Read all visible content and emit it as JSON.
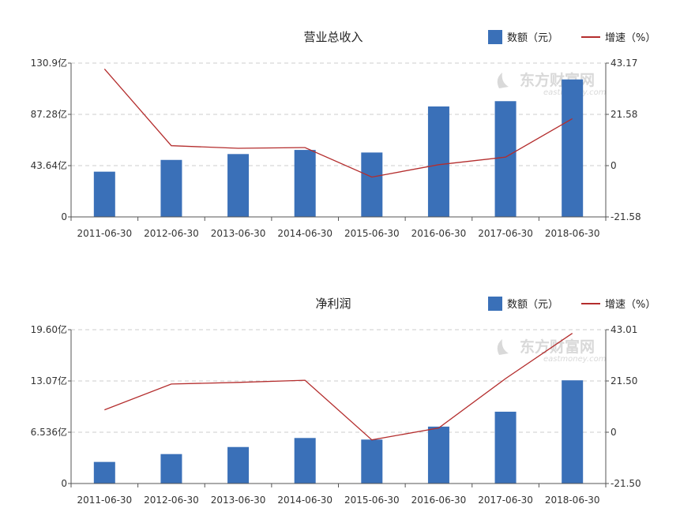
{
  "legend": {
    "bar_label": "数额（元）",
    "line_label": "增速（%）"
  },
  "watermark": {
    "main": "东方财富网",
    "sub": "eastmoney.com"
  },
  "colors": {
    "bar": "#3a70b8",
    "line": "#b42d2d",
    "grid": "#cccccc",
    "axis": "#555555"
  },
  "chart_data": [
    {
      "type": "bar",
      "title": "营业总收入",
      "categories": [
        "2011-06-30",
        "2012-06-30",
        "2013-06-30",
        "2014-06-30",
        "2015-06-30",
        "2016-06-30",
        "2017-06-30",
        "2018-06-30"
      ],
      "series": [
        {
          "name": "数额（元）",
          "type": "bar",
          "axis": "left",
          "unit": "亿",
          "values": [
            38.5,
            48.5,
            53.5,
            57.0,
            54.8,
            94.0,
            98.5,
            117.0
          ]
        },
        {
          "name": "增速（%）",
          "type": "line",
          "axis": "right",
          "values": [
            40.7,
            8.4,
            7.3,
            7.6,
            -4.8,
            0.4,
            3.6,
            19.8
          ]
        }
      ],
      "left_axis": {
        "ylim": [
          0,
          130.9
        ],
        "ticks": [
          "0",
          "43.64亿",
          "87.28亿",
          "130.9亿"
        ]
      },
      "right_axis": {
        "ylim": [
          -21.58,
          43.17
        ],
        "ticks": [
          "-21.58",
          "0",
          "21.58",
          "43.17"
        ]
      },
      "grid": true,
      "legend_position": "top-right"
    },
    {
      "type": "bar",
      "title": "净利润",
      "categories": [
        "2011-06-30",
        "2012-06-30",
        "2013-06-30",
        "2014-06-30",
        "2015-06-30",
        "2016-06-30",
        "2017-06-30",
        "2018-06-30"
      ],
      "series": [
        {
          "name": "数额（元）",
          "type": "bar",
          "axis": "left",
          "unit": "亿",
          "values": [
            2.75,
            3.75,
            4.65,
            5.8,
            5.6,
            7.25,
            9.15,
            13.15
          ]
        },
        {
          "name": "增速（%）",
          "type": "line",
          "axis": "right",
          "values": [
            9.4,
            20.2,
            20.9,
            21.8,
            -3.2,
            1.8,
            22.5,
            41.5
          ]
        }
      ],
      "left_axis": {
        "ylim": [
          0,
          19.6
        ],
        "ticks": [
          "0",
          "6.536亿",
          "13.07亿",
          "19.60亿"
        ]
      },
      "right_axis": {
        "ylim": [
          -21.5,
          43.01
        ],
        "ticks": [
          "-21.50",
          "0",
          "21.50",
          "43.01"
        ]
      },
      "grid": true,
      "legend_position": "top-right"
    }
  ]
}
